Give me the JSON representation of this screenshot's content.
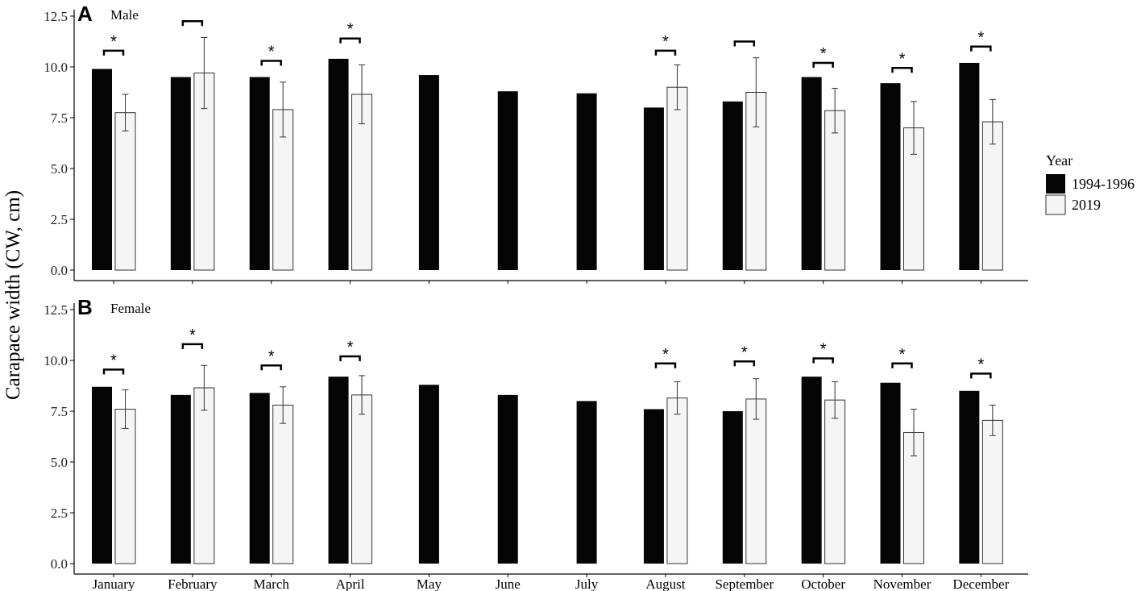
{
  "y_axis_label": "Carapace width (CW, cm)",
  "legend": {
    "title": "Year",
    "items": [
      {
        "label": "1994-1996",
        "color": "#050505"
      },
      {
        "label": "2019",
        "color": "#f5f5f5"
      }
    ]
  },
  "chart_data": [
    {
      "type": "bar",
      "panel_letter": "A",
      "title": "Male",
      "categories": [
        "January",
        "February",
        "March",
        "April",
        "May",
        "June",
        "July",
        "August",
        "September",
        "October",
        "November",
        "December"
      ],
      "ylim": [
        0,
        12.5
      ],
      "yticks": [
        "0.0",
        "2.5",
        "5.0",
        "7.5",
        "10.0",
        "12.5"
      ],
      "series": [
        {
          "name": "1994-1996",
          "values": [
            9.9,
            9.5,
            9.5,
            10.4,
            9.6,
            8.8,
            8.7,
            8.0,
            8.3,
            9.5,
            9.2,
            10.2
          ]
        },
        {
          "name": "2019",
          "values": [
            7.75,
            9.7,
            7.9,
            8.65,
            null,
            null,
            null,
            9.0,
            8.75,
            7.85,
            7.0,
            7.3
          ],
          "error": [
            0.9,
            1.75,
            1.35,
            1.45,
            null,
            null,
            null,
            1.1,
            1.7,
            1.1,
            1.3,
            1.1
          ]
        }
      ],
      "significance": [
        "*",
        "",
        "*",
        "*",
        "",
        "",
        "",
        "*",
        "",
        "*",
        "*",
        "*"
      ],
      "bracket_y": [
        10.8,
        12.25,
        10.3,
        11.4,
        null,
        null,
        null,
        10.8,
        11.25,
        10.2,
        9.95,
        11.0
      ]
    },
    {
      "type": "bar",
      "panel_letter": "B",
      "title": "Female",
      "categories": [
        "January",
        "February",
        "March",
        "April",
        "May",
        "June",
        "July",
        "August",
        "September",
        "October",
        "November",
        "December"
      ],
      "ylim": [
        0,
        12.5
      ],
      "yticks": [
        "0.0",
        "2.5",
        "5.0",
        "7.5",
        "10.0",
        "12.5"
      ],
      "series": [
        {
          "name": "1994-1996",
          "values": [
            8.7,
            8.3,
            8.4,
            9.2,
            8.8,
            8.3,
            8.0,
            7.6,
            7.5,
            9.2,
            8.9,
            8.5
          ]
        },
        {
          "name": "2019",
          "values": [
            7.6,
            8.65,
            7.8,
            8.3,
            null,
            null,
            null,
            8.15,
            8.1,
            8.05,
            6.45,
            7.05
          ],
          "error": [
            0.95,
            1.1,
            0.9,
            0.95,
            null,
            null,
            null,
            0.8,
            1.0,
            0.9,
            1.15,
            0.75
          ]
        }
      ],
      "significance": [
        "*",
        "*",
        "*",
        "*",
        "",
        "",
        "",
        "*",
        "*",
        "*",
        "*",
        "*"
      ],
      "bracket_y": [
        9.55,
        10.8,
        9.75,
        10.2,
        null,
        null,
        null,
        9.85,
        9.95,
        10.1,
        9.85,
        9.35
      ]
    }
  ]
}
